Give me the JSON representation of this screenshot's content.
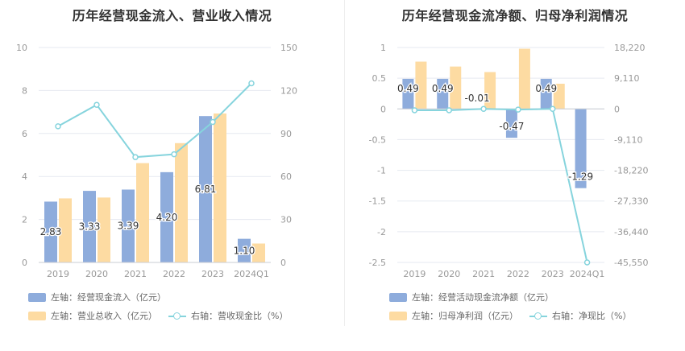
{
  "left_panel": {
    "title": "历年经营现金流入、营业收入情况",
    "legend": {
      "bar1": "左轴：经营现金流入（亿元）",
      "bar2": "左轴：营业总收入（亿元）",
      "line": "右轴：营收现金比（%）"
    }
  },
  "right_panel": {
    "title": "历年经营现金流净额、归母净利润情况",
    "legend": {
      "bar1": "左轴：经营活动现金流净额（亿元）",
      "bar2": "左轴：归母净利润（亿元）",
      "line": "右轴：净现比（%）"
    }
  },
  "colors": {
    "bar_blue": "#8eacdc",
    "bar_orange": "#fddba2",
    "line_teal": "#86d4dd",
    "grid": "#e6e9f0",
    "axis_text": "#999999"
  },
  "chart_data": [
    {
      "type": "bar",
      "title": "历年经营现金流入、营业收入情况",
      "categories": [
        "2019",
        "2020",
        "2021",
        "2022",
        "2023",
        "2024Q1"
      ],
      "left_ylim": [
        0,
        10
      ],
      "left_ticks": [
        "0",
        "2",
        "4",
        "6",
        "8",
        "10"
      ],
      "right_ylim": [
        0,
        150
      ],
      "right_ticks": [
        "0",
        "30",
        "60",
        "90",
        "120",
        "150"
      ],
      "series": [
        {
          "name": "左轴：经营现金流入（亿元）",
          "axis": "left",
          "kind": "bar",
          "values": [
            2.83,
            3.33,
            3.39,
            4.2,
            6.81,
            1.1
          ],
          "labels": [
            "2.83",
            "3.33",
            "3.39",
            "4.20",
            "6.81",
            "1.10"
          ]
        },
        {
          "name": "左轴：营业总收入（亿元）",
          "axis": "left",
          "kind": "bar",
          "values": [
            2.98,
            3.02,
            4.62,
            5.55,
            6.93,
            0.88
          ]
        },
        {
          "name": "右轴：营收现金比（%）",
          "axis": "right",
          "kind": "line",
          "values": [
            95,
            110,
            73.5,
            75.5,
            98,
            125
          ]
        }
      ],
      "grid": true,
      "legend_position": "bottom"
    },
    {
      "type": "bar",
      "title": "历年经营现金流净额、归母净利润情况",
      "categories": [
        "2019",
        "2020",
        "2021",
        "2022",
        "2023",
        "2024Q1"
      ],
      "left_ylim": [
        -2.5,
        1
      ],
      "left_ticks": [
        "1",
        "0.5",
        "0",
        "-0.5",
        "-1",
        "-1.5",
        "-2",
        "-2.5"
      ],
      "right_ylim": [
        -45550,
        18220
      ],
      "right_ticks": [
        "18,220",
        "9,110",
        "0",
        "-9,110",
        "-18,220",
        "-27,330",
        "-36,440",
        "-45,550"
      ],
      "series": [
        {
          "name": "左轴：经营活动现金流净额（亿元）",
          "axis": "left",
          "kind": "bar",
          "values": [
            0.49,
            0.49,
            -0.01,
            -0.47,
            0.49,
            -1.29
          ],
          "labels": [
            "0.49",
            "0.49",
            "-0.01",
            "-0.47",
            "0.49",
            "-1.29"
          ]
        },
        {
          "name": "左轴：归母净利润（亿元）",
          "axis": "left",
          "kind": "bar",
          "values": [
            0.77,
            0.69,
            0.6,
            0.98,
            0.41,
            0.0
          ]
        },
        {
          "name": "右轴：净现比（%）",
          "axis": "right",
          "kind": "line",
          "values": [
            -400,
            -400,
            0,
            -200,
            0,
            -45550
          ]
        }
      ],
      "grid": true,
      "legend_position": "bottom"
    }
  ]
}
